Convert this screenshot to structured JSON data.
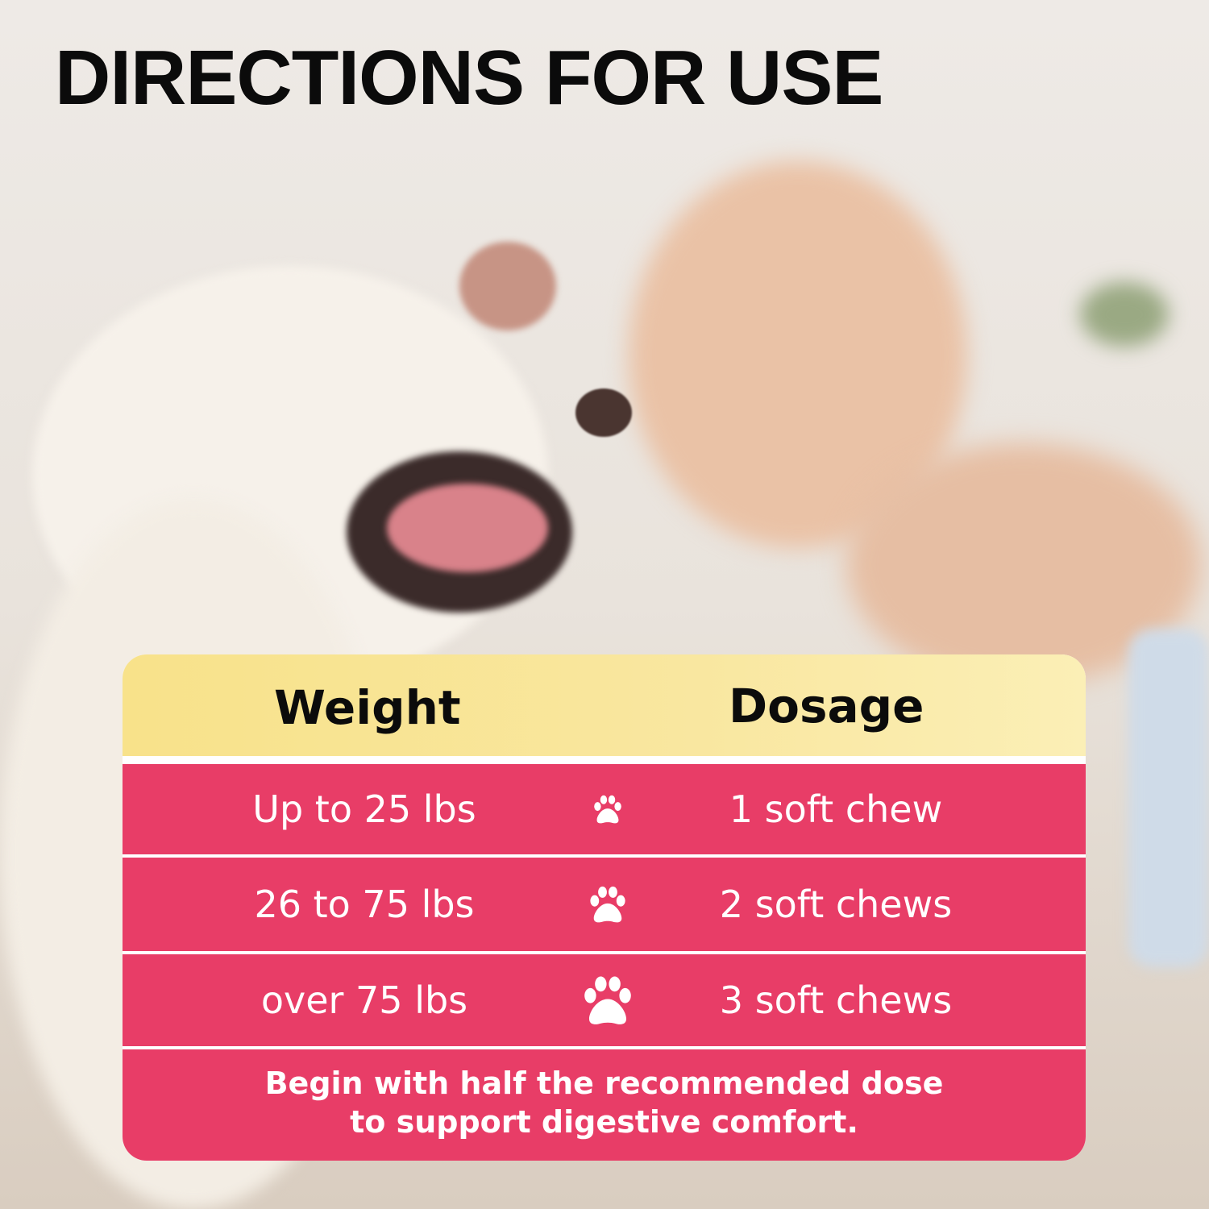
{
  "title": "DIRECTIONS FOR USE",
  "table": {
    "headers": {
      "weight": "Weight",
      "dosage": "Dosage"
    },
    "rows": [
      {
        "weight": "Up to 25 lbs",
        "dosage": "1 soft chew",
        "icon": "paw-icon"
      },
      {
        "weight": "26 to 75 lbs",
        "dosage": "2 soft chews",
        "icon": "paw-icon"
      },
      {
        "weight": "over 75 lbs",
        "dosage": "3 soft chews",
        "icon": "paw-icon"
      }
    ],
    "note_line1": "Begin with half the recommended dose",
    "note_line2": "to support digestive comfort."
  },
  "colors": {
    "header": "#F8E28A",
    "rows": "#E83D67",
    "text_light": "#FFFFFF",
    "title": "#0B0B0B"
  }
}
